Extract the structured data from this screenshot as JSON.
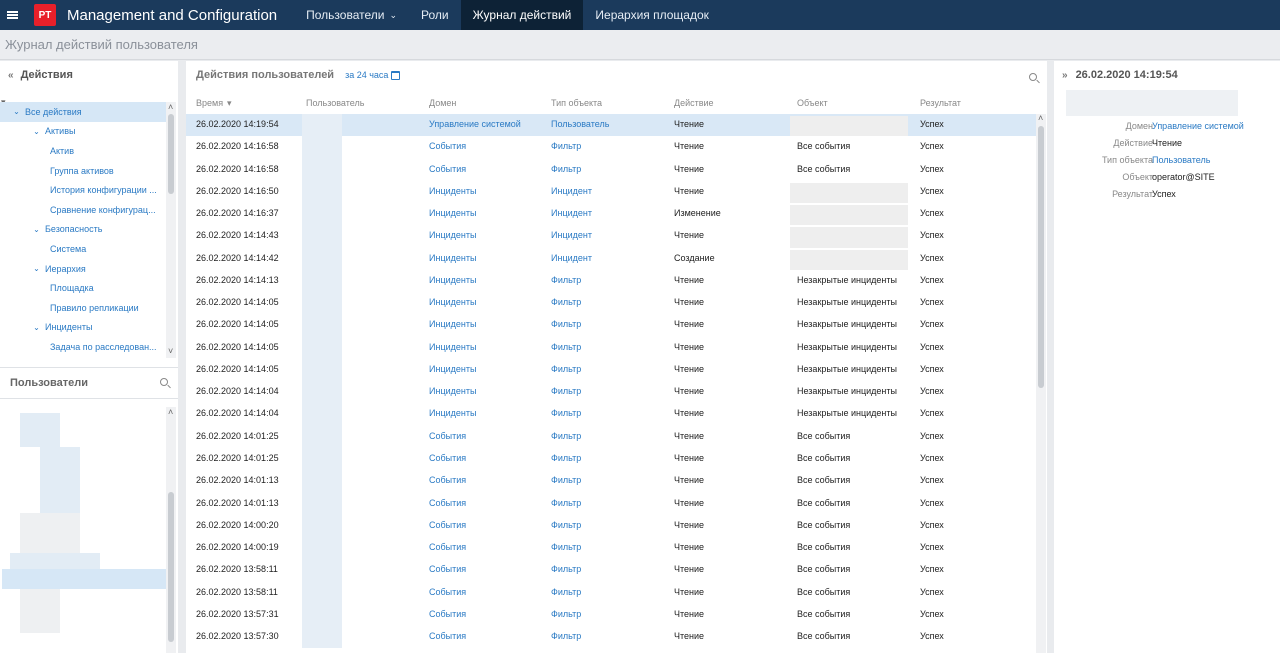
{
  "app": {
    "title": "Management and Configuration",
    "logo_text": "PT"
  },
  "nav": {
    "tabs": [
      {
        "label": "Пользователи",
        "has_dropdown": true
      },
      {
        "label": "Роли"
      },
      {
        "label": "Журнал действий",
        "active": true
      },
      {
        "label": "Иерархия площадок"
      }
    ]
  },
  "page": {
    "title": "Журнал действий пользователя"
  },
  "actions_panel": {
    "title": "Действия",
    "tree": [
      {
        "label": "Все действия",
        "level": 0,
        "expanded": true,
        "selected": true
      },
      {
        "label": "Активы",
        "level": 1,
        "expanded": true
      },
      {
        "label": "Актив",
        "level": 2
      },
      {
        "label": "Группа активов",
        "level": 2
      },
      {
        "label": "История конфигурации ...",
        "level": 2
      },
      {
        "label": "Сравнение конфигурац...",
        "level": 2
      },
      {
        "label": "Безопасность",
        "level": 1,
        "expanded": true
      },
      {
        "label": "Система",
        "level": 2
      },
      {
        "label": "Иерархия",
        "level": 1,
        "expanded": true
      },
      {
        "label": "Площадка",
        "level": 2
      },
      {
        "label": "Правило репликации",
        "level": 2
      },
      {
        "label": "Инциденты",
        "level": 1,
        "expanded": true
      },
      {
        "label": "Задача по расследован...",
        "level": 2
      }
    ]
  },
  "users_panel": {
    "title": "Пользователи"
  },
  "log": {
    "title": "Действия пользователей",
    "period": "за 24 часа",
    "columns": [
      "Время",
      "Пользователь",
      "Домен",
      "Тип объекта",
      "Действие",
      "Объект",
      "Результат"
    ],
    "rows": [
      {
        "time": "26.02.2020 14:19:54",
        "domain": "Управление системой",
        "type": "Пользователь",
        "action": "Чтение",
        "object": "",
        "result": "Успех",
        "selected": true
      },
      {
        "time": "26.02.2020 14:16:58",
        "domain": "События",
        "type": "Фильтр",
        "action": "Чтение",
        "object": "Все события",
        "result": "Успех"
      },
      {
        "time": "26.02.2020 14:16:58",
        "domain": "События",
        "type": "Фильтр",
        "action": "Чтение",
        "object": "Все события",
        "result": "Успех"
      },
      {
        "time": "26.02.2020 14:16:50",
        "domain": "Инциденты",
        "type": "Инцидент",
        "action": "Чтение",
        "object": "",
        "result": "Успех"
      },
      {
        "time": "26.02.2020 14:16:37",
        "domain": "Инциденты",
        "type": "Инцидент",
        "action": "Изменение",
        "object": "",
        "result": "Успех"
      },
      {
        "time": "26.02.2020 14:14:43",
        "domain": "Инциденты",
        "type": "Инцидент",
        "action": "Чтение",
        "object": "",
        "result": "Успех"
      },
      {
        "time": "26.02.2020 14:14:42",
        "domain": "Инциденты",
        "type": "Инцидент",
        "action": "Создание",
        "object": "",
        "result": "Успех"
      },
      {
        "time": "26.02.2020 14:14:13",
        "domain": "Инциденты",
        "type": "Фильтр",
        "action": "Чтение",
        "object": "Незакрытые инциденты",
        "result": "Успех"
      },
      {
        "time": "26.02.2020 14:14:05",
        "domain": "Инциденты",
        "type": "Фильтр",
        "action": "Чтение",
        "object": "Незакрытые инциденты",
        "result": "Успех"
      },
      {
        "time": "26.02.2020 14:14:05",
        "domain": "Инциденты",
        "type": "Фильтр",
        "action": "Чтение",
        "object": "Незакрытые инциденты",
        "result": "Успех"
      },
      {
        "time": "26.02.2020 14:14:05",
        "domain": "Инциденты",
        "type": "Фильтр",
        "action": "Чтение",
        "object": "Незакрытые инциденты",
        "result": "Успех"
      },
      {
        "time": "26.02.2020 14:14:05",
        "domain": "Инциденты",
        "type": "Фильтр",
        "action": "Чтение",
        "object": "Незакрытые инциденты",
        "result": "Успех"
      },
      {
        "time": "26.02.2020 14:14:04",
        "domain": "Инциденты",
        "type": "Фильтр",
        "action": "Чтение",
        "object": "Незакрытые инциденты",
        "result": "Успех"
      },
      {
        "time": "26.02.2020 14:14:04",
        "domain": "Инциденты",
        "type": "Фильтр",
        "action": "Чтение",
        "object": "Незакрытые инциденты",
        "result": "Успех"
      },
      {
        "time": "26.02.2020 14:01:25",
        "domain": "События",
        "type": "Фильтр",
        "action": "Чтение",
        "object": "Все события",
        "result": "Успех"
      },
      {
        "time": "26.02.2020 14:01:25",
        "domain": "События",
        "type": "Фильтр",
        "action": "Чтение",
        "object": "Все события",
        "result": "Успех"
      },
      {
        "time": "26.02.2020 14:01:13",
        "domain": "События",
        "type": "Фильтр",
        "action": "Чтение",
        "object": "Все события",
        "result": "Успех"
      },
      {
        "time": "26.02.2020 14:01:13",
        "domain": "События",
        "type": "Фильтр",
        "action": "Чтение",
        "object": "Все события",
        "result": "Успех"
      },
      {
        "time": "26.02.2020 14:00:20",
        "domain": "События",
        "type": "Фильтр",
        "action": "Чтение",
        "object": "Все события",
        "result": "Успех"
      },
      {
        "time": "26.02.2020 14:00:19",
        "domain": "События",
        "type": "Фильтр",
        "action": "Чтение",
        "object": "Все события",
        "result": "Успех"
      },
      {
        "time": "26.02.2020 13:58:11",
        "domain": "События",
        "type": "Фильтр",
        "action": "Чтение",
        "object": "Все события",
        "result": "Успех"
      },
      {
        "time": "26.02.2020 13:58:11",
        "domain": "События",
        "type": "Фильтр",
        "action": "Чтение",
        "object": "Все события",
        "result": "Успех"
      },
      {
        "time": "26.02.2020 13:57:31",
        "domain": "События",
        "type": "Фильтр",
        "action": "Чтение",
        "object": "Все события",
        "result": "Успех"
      },
      {
        "time": "26.02.2020 13:57:30",
        "domain": "События",
        "type": "Фильтр",
        "action": "Чтение",
        "object": "Все события",
        "result": "Успех"
      }
    ]
  },
  "details": {
    "title": "26.02.2020 14:19:54",
    "fields": [
      {
        "key": "Домен",
        "value": "Управление системой",
        "link": true
      },
      {
        "key": "Действие",
        "value": "Чтение"
      },
      {
        "key": "Тип объекта",
        "value": "Пользователь",
        "link": true
      },
      {
        "key": "Объект",
        "value": "operator@SITE"
      },
      {
        "key": "Результат",
        "value": "Успех"
      }
    ]
  },
  "colors": {
    "topbar": "#1b3a5c",
    "active_tab": "#0d2236",
    "link": "#2a7ac4",
    "selection": "#d9e8f6",
    "logo": "#e8202a"
  }
}
